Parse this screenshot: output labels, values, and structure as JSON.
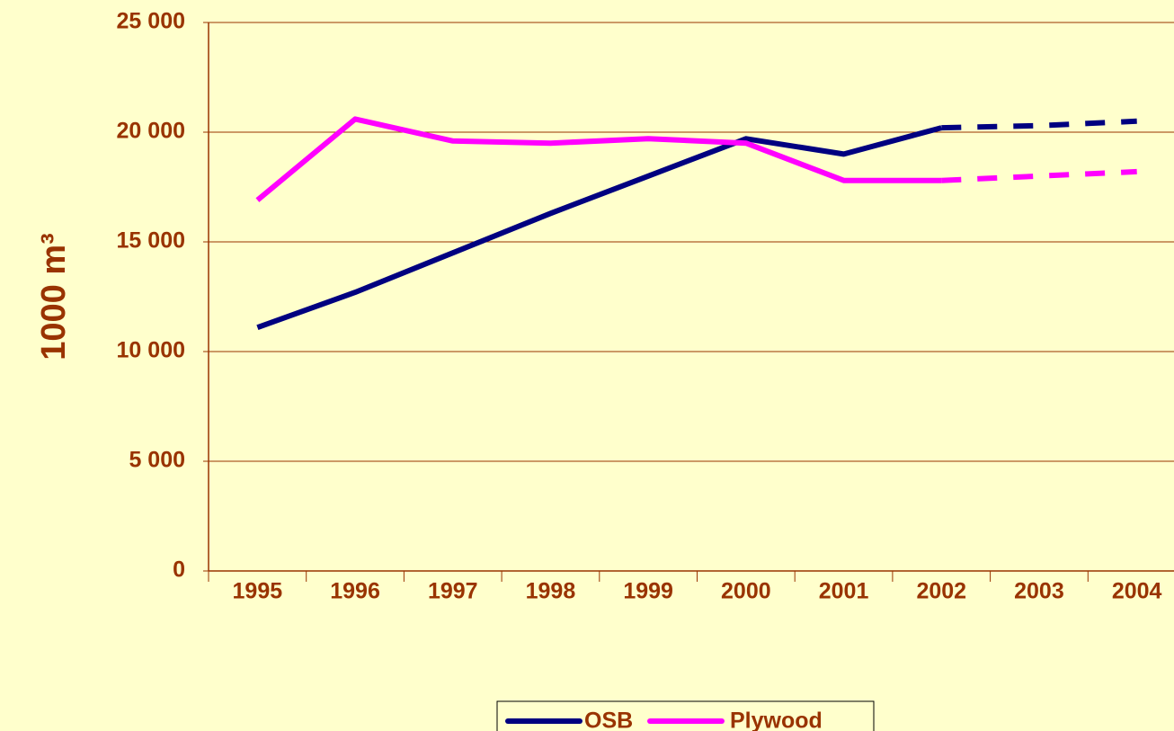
{
  "chart_data": {
    "type": "line",
    "y_label": "1000 m³",
    "categories": [
      "1995",
      "1996",
      "1997",
      "1998",
      "1999",
      "2000",
      "2001",
      "2002",
      "2003",
      "2004"
    ],
    "series": [
      {
        "name": "OSB",
        "color": "#000080",
        "values": [
          11100,
          12700,
          14500,
          16300,
          18000,
          19700,
          19000,
          20200,
          20300,
          20500
        ]
      },
      {
        "name": "Plywood",
        "color": "#ff00ff",
        "values": [
          16900,
          20600,
          19600,
          19500,
          19700,
          19500,
          17800,
          17800,
          18000,
          18200
        ]
      }
    ],
    "dashed_from_index": 7,
    "ylim": [
      0,
      25000
    ],
    "yticks": [
      0,
      {
        "value": 5000,
        "label": "5 000"
      },
      {
        "value": 10000,
        "label": "10 000"
      },
      {
        "value": 15000,
        "label": "15 000"
      },
      {
        "value": 20000,
        "label": "20 000"
      },
      {
        "value": 25000,
        "label": "25 000"
      }
    ],
    "grid": true,
    "legend": "bottom"
  }
}
